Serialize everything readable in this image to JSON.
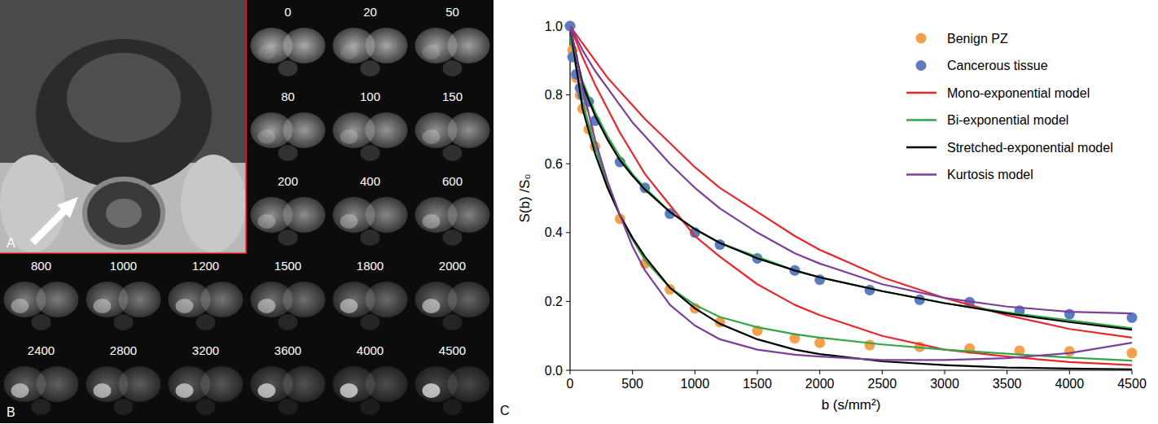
{
  "image_panels": {
    "A": {
      "panel_label": "A"
    },
    "B": {
      "panel_label": "B",
      "b_values": [
        0,
        20,
        50,
        80,
        100,
        150,
        200,
        400,
        600,
        800,
        1000,
        1200,
        1500,
        1800,
        2000,
        2400,
        2800,
        3200,
        3600,
        4000,
        4500
      ]
    }
  },
  "chart_data": {
    "type": "scatter",
    "panel_label": "C",
    "xlabel": "b (s/mm²)",
    "ylabel": "S(b) /S₀",
    "xlim": [
      0,
      4500
    ],
    "ylim": [
      0,
      1
    ],
    "xticks": [
      0,
      500,
      1000,
      1500,
      2000,
      2500,
      3000,
      3500,
      4000,
      4500
    ],
    "yticks": [
      {
        "value": 0,
        "label": "0.0"
      },
      {
        "value": 0.2,
        "label": "0.2"
      },
      {
        "value": 0.4,
        "label": "0.4"
      },
      {
        "value": 0.6,
        "label": "0.6"
      },
      {
        "value": 0.8,
        "label": "0.8"
      },
      {
        "value": 1,
        "label": "1.0"
      }
    ],
    "grid": false,
    "legend": "upper right",
    "series": [
      {
        "name": "Benign PZ",
        "type": "scatter",
        "color": "#f5a04b",
        "marker": "circle",
        "x": [
          0,
          20,
          50,
          80,
          100,
          150,
          200,
          400,
          600,
          800,
          1000,
          1200,
          1500,
          1800,
          2000,
          2400,
          2800,
          3200,
          3600,
          4000,
          4500
        ],
        "values": [
          1.0,
          0.93,
          0.85,
          0.8,
          0.76,
          0.7,
          0.65,
          0.44,
          0.31,
          0.235,
          0.18,
          0.14,
          0.115,
          0.093,
          0.08,
          0.073,
          0.068,
          0.063,
          0.057,
          0.055,
          0.05
        ]
      },
      {
        "name": "Cancerous tissue",
        "type": "scatter",
        "color": "#5b7cc2",
        "marker": "circle",
        "x": [
          0,
          20,
          50,
          80,
          100,
          150,
          200,
          400,
          600,
          800,
          1000,
          1200,
          1500,
          1800,
          2000,
          2400,
          2800,
          3200,
          3600,
          4000,
          4500
        ],
        "values": [
          1.0,
          0.91,
          0.86,
          0.82,
          0.8,
          0.78,
          0.725,
          0.605,
          0.53,
          0.455,
          0.4,
          0.365,
          0.325,
          0.29,
          0.263,
          0.233,
          0.205,
          0.198,
          0.173,
          0.163,
          0.153
        ]
      },
      {
        "name": "Mono-exponential model",
        "type": "line",
        "color": "#e8262b",
        "line_style": "solid",
        "x": [
          0,
          100,
          200,
          300,
          400,
          500,
          600,
          800,
          1000,
          1200,
          1500,
          1800,
          2000,
          2500,
          3000,
          3500,
          4000,
          4500
        ],
        "curves": [
          {
            "values": [
              1.0,
              0.91,
              0.83,
              0.76,
              0.69,
              0.63,
              0.57,
              0.48,
              0.39,
              0.33,
              0.25,
              0.19,
              0.16,
              0.1,
              0.06,
              0.04,
              0.024,
              0.015
            ]
          },
          {
            "values": [
              1.0,
              0.95,
              0.9,
              0.85,
              0.81,
              0.77,
              0.73,
              0.66,
              0.59,
              0.53,
              0.46,
              0.39,
              0.35,
              0.27,
              0.21,
              0.16,
              0.12,
              0.095
            ]
          }
        ]
      },
      {
        "name": "Bi-exponential model",
        "type": "line",
        "color": "#33a64a",
        "line_style": "solid",
        "x": [
          0,
          100,
          200,
          300,
          400,
          500,
          600,
          800,
          1000,
          1200,
          1500,
          1800,
          2000,
          2500,
          3000,
          3500,
          4000,
          4500
        ],
        "curves": [
          {
            "values": [
              0.97,
              0.78,
              0.65,
              0.54,
              0.45,
              0.38,
              0.32,
              0.24,
              0.19,
              0.155,
              0.125,
              0.105,
              0.095,
              0.075,
              0.06,
              0.048,
              0.037,
              0.028
            ]
          },
          {
            "values": [
              0.97,
              0.84,
              0.75,
              0.68,
              0.62,
              0.57,
              0.53,
              0.46,
              0.41,
              0.37,
              0.33,
              0.29,
              0.27,
              0.23,
              0.195,
              0.168,
              0.145,
              0.122
            ]
          }
        ]
      },
      {
        "name": "Stretched-exponential model",
        "type": "line",
        "color": "#000000",
        "line_style": "solid",
        "x": [
          0,
          100,
          200,
          300,
          400,
          500,
          600,
          800,
          1000,
          1200,
          1500,
          1800,
          2000,
          2500,
          3000,
          3500,
          4000,
          4500
        ],
        "curves": [
          {
            "values": [
              1.0,
              0.76,
              0.63,
              0.53,
              0.45,
              0.385,
              0.33,
              0.24,
              0.18,
              0.135,
              0.09,
              0.06,
              0.047,
              0.026,
              0.015,
              0.008,
              0.005,
              0.003
            ]
          },
          {
            "values": [
              1.0,
              0.83,
              0.74,
              0.67,
              0.61,
              0.565,
              0.525,
              0.46,
              0.41,
              0.37,
              0.325,
              0.29,
              0.27,
              0.23,
              0.195,
              0.165,
              0.14,
              0.118
            ]
          }
        ]
      },
      {
        "name": "Kurtosis model",
        "type": "line",
        "color": "#7b3f9a",
        "line_style": "solid",
        "x": [
          0,
          100,
          200,
          300,
          400,
          500,
          600,
          800,
          1000,
          1200,
          1500,
          1800,
          2000,
          2500,
          3000,
          3500,
          4000,
          4500
        ],
        "curves": [
          {
            "values": [
              1.0,
              0.82,
              0.67,
              0.55,
              0.45,
              0.36,
              0.29,
              0.19,
              0.13,
              0.09,
              0.06,
              0.045,
              0.04,
              0.03,
              0.03,
              0.035,
              0.05,
              0.08
            ]
          },
          {
            "values": [
              1.0,
              0.93,
              0.87,
              0.82,
              0.77,
              0.72,
              0.68,
              0.6,
              0.53,
              0.47,
              0.4,
              0.34,
              0.31,
              0.25,
              0.21,
              0.185,
              0.17,
              0.165
            ]
          }
        ]
      }
    ]
  }
}
